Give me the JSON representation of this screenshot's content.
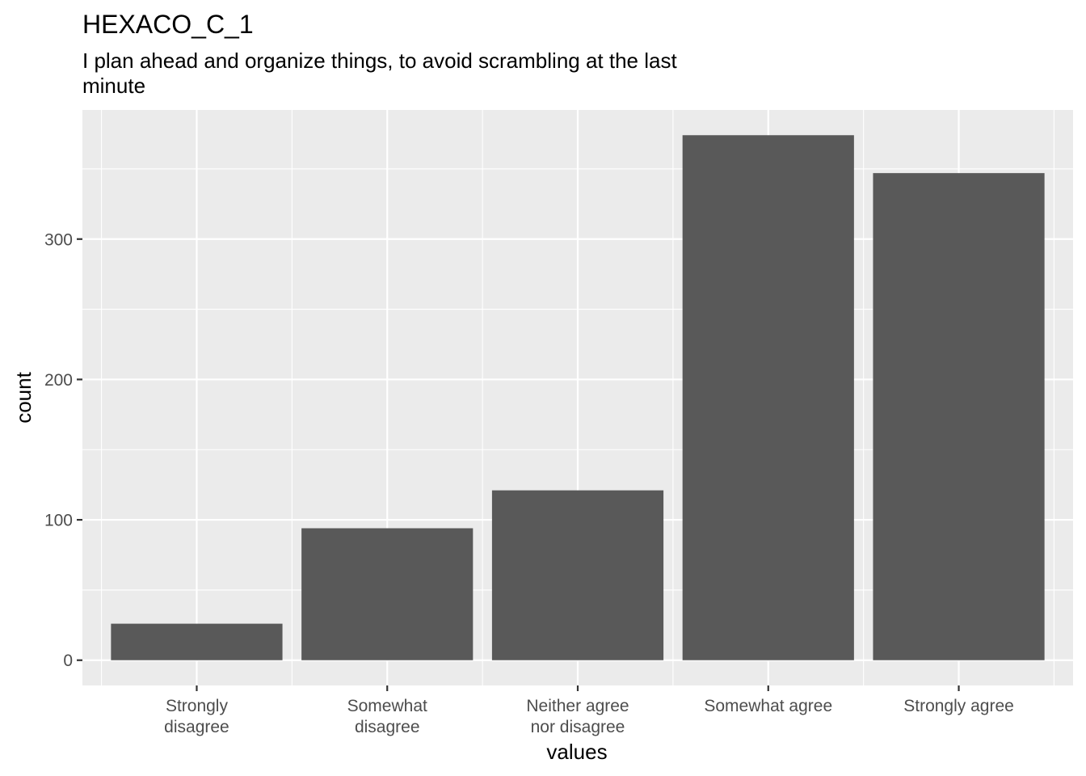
{
  "colors": {
    "panel": "#ebebeb",
    "grid": "#ffffff",
    "bar": "#595959",
    "tick": "#333333"
  },
  "chart_data": {
    "type": "bar",
    "title": "HEXACO_C_1",
    "subtitle_lines": [
      "I plan ahead and organize things, to avoid scrambling at the last",
      "minute"
    ],
    "xlabel": "values",
    "ylabel": "count",
    "categories": [
      [
        "Strongly",
        "disagree"
      ],
      [
        "Somewhat",
        "disagree"
      ],
      [
        "Neither agree",
        "nor disagree"
      ],
      [
        "Somewhat agree"
      ],
      [
        "Strongly agree"
      ]
    ],
    "values": [
      26,
      94,
      121,
      374,
      347
    ],
    "ylim": [
      -18,
      392
    ],
    "yticks": [
      0,
      100,
      200,
      300
    ],
    "yticks_minor": [
      50,
      150,
      250,
      350
    ],
    "grid": true,
    "legend": "none"
  }
}
